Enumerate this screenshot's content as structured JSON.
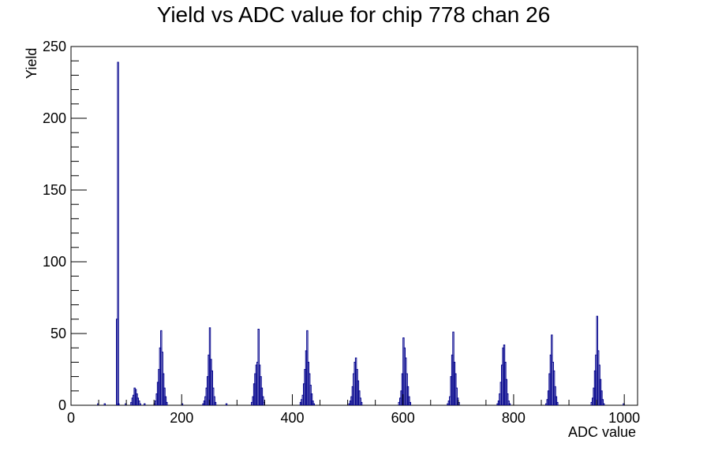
{
  "chart_data": {
    "type": "bar",
    "title": "Yield vs ADC value for chip 778 chan 26",
    "xlabel": "ADC value",
    "ylabel": "Yield",
    "xlim": [
      0,
      1024
    ],
    "ylim": [
      0,
      250
    ],
    "x_ticks": [
      0,
      200,
      400,
      600,
      800,
      1000
    ],
    "y_ticks": [
      0,
      50,
      100,
      150,
      200,
      250
    ],
    "grid": false,
    "color": "#00008b",
    "bins": [
      [
        48,
        1
      ],
      [
        60,
        1
      ],
      [
        82,
        60
      ],
      [
        84,
        239
      ],
      [
        85,
        1
      ],
      [
        98,
        1
      ],
      [
        108,
        2
      ],
      [
        110,
        5
      ],
      [
        112,
        7
      ],
      [
        114,
        12
      ],
      [
        116,
        11
      ],
      [
        118,
        8
      ],
      [
        120,
        5
      ],
      [
        122,
        3
      ],
      [
        124,
        1
      ],
      [
        132,
        1
      ],
      [
        150,
        1
      ],
      [
        152,
        3
      ],
      [
        154,
        8
      ],
      [
        156,
        16
      ],
      [
        158,
        25
      ],
      [
        160,
        40
      ],
      [
        162,
        52
      ],
      [
        164,
        37
      ],
      [
        166,
        22
      ],
      [
        168,
        12
      ],
      [
        170,
        6
      ],
      [
        172,
        2
      ],
      [
        200,
        1
      ],
      [
        238,
        1
      ],
      [
        240,
        3
      ],
      [
        242,
        6
      ],
      [
        244,
        12
      ],
      [
        246,
        20
      ],
      [
        248,
        35
      ],
      [
        250,
        54
      ],
      [
        252,
        32
      ],
      [
        254,
        24
      ],
      [
        256,
        12
      ],
      [
        258,
        6
      ],
      [
        260,
        2
      ],
      [
        280,
        1
      ],
      [
        326,
        2
      ],
      [
        328,
        6
      ],
      [
        330,
        15
      ],
      [
        332,
        22
      ],
      [
        334,
        28
      ],
      [
        336,
        30
      ],
      [
        338,
        53
      ],
      [
        340,
        28
      ],
      [
        342,
        20
      ],
      [
        344,
        12
      ],
      [
        346,
        6
      ],
      [
        348,
        2
      ],
      [
        414,
        2
      ],
      [
        416,
        4
      ],
      [
        418,
        7
      ],
      [
        420,
        15
      ],
      [
        422,
        25
      ],
      [
        424,
        38
      ],
      [
        426,
        52
      ],
      [
        428,
        30
      ],
      [
        430,
        22
      ],
      [
        432,
        14
      ],
      [
        434,
        8
      ],
      [
        436,
        3
      ],
      [
        438,
        1
      ],
      [
        502,
        1
      ],
      [
        504,
        3
      ],
      [
        506,
        6
      ],
      [
        508,
        13
      ],
      [
        510,
        22
      ],
      [
        512,
        30
      ],
      [
        514,
        33
      ],
      [
        516,
        25
      ],
      [
        518,
        17
      ],
      [
        520,
        10
      ],
      [
        522,
        5
      ],
      [
        524,
        2
      ],
      [
        592,
        2
      ],
      [
        594,
        5
      ],
      [
        596,
        10
      ],
      [
        598,
        22
      ],
      [
        600,
        47
      ],
      [
        602,
        40
      ],
      [
        604,
        33
      ],
      [
        606,
        22
      ],
      [
        608,
        13
      ],
      [
        610,
        6
      ],
      [
        612,
        2
      ],
      [
        680,
        1
      ],
      [
        682,
        3
      ],
      [
        684,
        6
      ],
      [
        686,
        20
      ],
      [
        688,
        35
      ],
      [
        690,
        51
      ],
      [
        692,
        30
      ],
      [
        694,
        22
      ],
      [
        696,
        12
      ],
      [
        698,
        5
      ],
      [
        700,
        2
      ],
      [
        770,
        1
      ],
      [
        772,
        3
      ],
      [
        774,
        8
      ],
      [
        776,
        16
      ],
      [
        778,
        28
      ],
      [
        780,
        40
      ],
      [
        782,
        42
      ],
      [
        784,
        30
      ],
      [
        786,
        18
      ],
      [
        788,
        8
      ],
      [
        790,
        3
      ],
      [
        792,
        1
      ],
      [
        858,
        1
      ],
      [
        860,
        4
      ],
      [
        862,
        10
      ],
      [
        864,
        22
      ],
      [
        866,
        35
      ],
      [
        868,
        49
      ],
      [
        870,
        30
      ],
      [
        872,
        24
      ],
      [
        874,
        13
      ],
      [
        876,
        6
      ],
      [
        878,
        2
      ],
      [
        940,
        2
      ],
      [
        942,
        5
      ],
      [
        944,
        12
      ],
      [
        946,
        24
      ],
      [
        948,
        35
      ],
      [
        950,
        62
      ],
      [
        952,
        38
      ],
      [
        954,
        28
      ],
      [
        956,
        18
      ],
      [
        958,
        10
      ],
      [
        960,
        4
      ],
      [
        962,
        1
      ],
      [
        998,
        1
      ]
    ]
  }
}
